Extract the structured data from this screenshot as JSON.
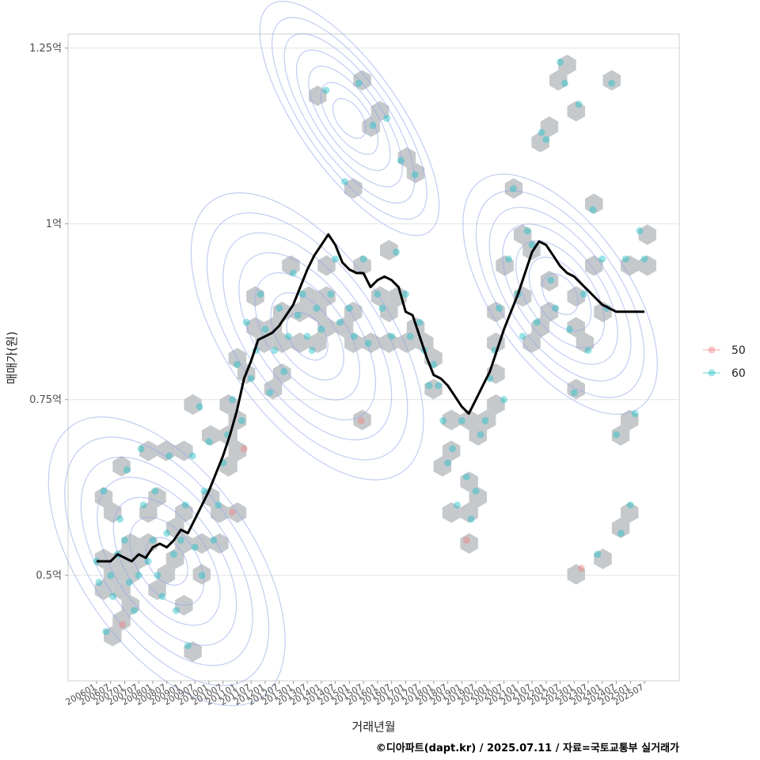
{
  "chart_data": {
    "type": "scatter",
    "xlabel": "거래년월",
    "ylabel": "매매가(원)",
    "x_ticks": [
      "200601",
      "200607",
      "200701",
      "200707",
      "200801",
      "200807",
      "200901",
      "200907",
      "201001",
      "201007",
      "201101",
      "201107",
      "201201",
      "201207",
      "201301",
      "201307",
      "201401",
      "201407",
      "201501",
      "201507",
      "201601",
      "201607",
      "201701",
      "201707",
      "201801",
      "201807",
      "201901",
      "201907",
      "202001",
      "202007",
      "202101",
      "202107",
      "202201",
      "202207",
      "202301",
      "202307",
      "202401",
      "202407",
      "202501",
      "202507"
    ],
    "y_ticks": [
      {
        "value": 0.5,
        "label": "0.5억"
      },
      {
        "value": 0.75,
        "label": "0.75억"
      },
      {
        "value": 1.0,
        "label": "1억"
      },
      {
        "value": 1.25,
        "label": "1.25억"
      }
    ],
    "ylim": [
      0.35,
      1.27
    ],
    "grid": true,
    "legend_position": "right",
    "legend": [
      {
        "name": "50",
        "color": "#f08080"
      },
      {
        "name": "60",
        "color": "#20c0c8"
      }
    ],
    "layers": [
      "hexbin density",
      "density contours",
      "scatter points by size group",
      "moving average line"
    ],
    "moving_average": {
      "color": "#000000",
      "points": [
        [
          "200601",
          0.52
        ],
        [
          "200604",
          0.52
        ],
        [
          "200607",
          0.52
        ],
        [
          "200610",
          0.53
        ],
        [
          "200701",
          0.525
        ],
        [
          "200704",
          0.52
        ],
        [
          "200707",
          0.53
        ],
        [
          "200710",
          0.525
        ],
        [
          "200801",
          0.54
        ],
        [
          "200804",
          0.545
        ],
        [
          "200807",
          0.54
        ],
        [
          "200810",
          0.55
        ],
        [
          "200901",
          0.565
        ],
        [
          "200904",
          0.56
        ],
        [
          "200907",
          0.58
        ],
        [
          "200910",
          0.6
        ],
        [
          "201001",
          0.62
        ],
        [
          "201004",
          0.645
        ],
        [
          "201007",
          0.67
        ],
        [
          "201010",
          0.7
        ],
        [
          "201101",
          0.735
        ],
        [
          "201104",
          0.78
        ],
        [
          "201107",
          0.805
        ],
        [
          "201110",
          0.835
        ],
        [
          "201201",
          0.84
        ],
        [
          "201204",
          0.845
        ],
        [
          "201207",
          0.855
        ],
        [
          "201210",
          0.87
        ],
        [
          "201301",
          0.885
        ],
        [
          "201304",
          0.91
        ],
        [
          "201307",
          0.935
        ],
        [
          "201310",
          0.955
        ],
        [
          "201401",
          0.97
        ],
        [
          "201404",
          0.985
        ],
        [
          "201407",
          0.97
        ],
        [
          "201410",
          0.945
        ],
        [
          "201501",
          0.935
        ],
        [
          "201504",
          0.93
        ],
        [
          "201507",
          0.93
        ],
        [
          "201510",
          0.91
        ],
        [
          "201601",
          0.92
        ],
        [
          "201604",
          0.925
        ],
        [
          "201607",
          0.92
        ],
        [
          "201610",
          0.91
        ],
        [
          "201701",
          0.875
        ],
        [
          "201704",
          0.87
        ],
        [
          "201707",
          0.84
        ],
        [
          "201710",
          0.81
        ],
        [
          "201801",
          0.785
        ],
        [
          "201804",
          0.78
        ],
        [
          "201807",
          0.77
        ],
        [
          "201810",
          0.755
        ],
        [
          "201901",
          0.74
        ],
        [
          "201904",
          0.73
        ],
        [
          "201907",
          0.75
        ],
        [
          "201910",
          0.77
        ],
        [
          "202001",
          0.79
        ],
        [
          "202004",
          0.82
        ],
        [
          "202007",
          0.85
        ],
        [
          "202010",
          0.875
        ],
        [
          "202101",
          0.9
        ],
        [
          "202104",
          0.93
        ],
        [
          "202107",
          0.96
        ],
        [
          "202110",
          0.975
        ],
        [
          "202201",
          0.97
        ],
        [
          "202204",
          0.955
        ],
        [
          "202207",
          0.94
        ],
        [
          "202210",
          0.93
        ],
        [
          "202301",
          0.925
        ],
        [
          "202304",
          0.915
        ],
        [
          "202307",
          0.905
        ],
        [
          "202310",
          0.895
        ],
        [
          "202401",
          0.885
        ],
        [
          "202404",
          0.88
        ],
        [
          "202407",
          0.875
        ],
        [
          "202410",
          0.875
        ],
        [
          "202501",
          0.875
        ],
        [
          "202504",
          0.875
        ],
        [
          "202507",
          0.875
        ]
      ]
    },
    "series": [
      {
        "name": "60",
        "points": [
          [
            "200601",
            0.52
          ],
          [
            "200602",
            0.49
          ],
          [
            "200604",
            0.62
          ],
          [
            "200605",
            0.42
          ],
          [
            "200607",
            0.5
          ],
          [
            "200608",
            0.47
          ],
          [
            "200610",
            0.53
          ],
          [
            "200611",
            0.58
          ],
          [
            "200701",
            0.55
          ],
          [
            "200702",
            0.65
          ],
          [
            "200703",
            0.49
          ],
          [
            "200705",
            0.45
          ],
          [
            "200707",
            0.5
          ],
          [
            "200708",
            0.68
          ],
          [
            "200709",
            0.6
          ],
          [
            "200711",
            0.52
          ],
          [
            "200801",
            0.55
          ],
          [
            "200802",
            0.62
          ],
          [
            "200803",
            0.5
          ],
          [
            "200805",
            0.47
          ],
          [
            "200807",
            0.56
          ],
          [
            "200808",
            0.67
          ],
          [
            "200810",
            0.53
          ],
          [
            "200811",
            0.45
          ],
          [
            "200901",
            0.55
          ],
          [
            "200903",
            0.6
          ],
          [
            "200904",
            0.4
          ],
          [
            "200906",
            0.67
          ],
          [
            "200907",
            0.54
          ],
          [
            "200909",
            0.74
          ],
          [
            "200910",
            0.5
          ],
          [
            "200911",
            0.62
          ],
          [
            "201001",
            0.69
          ],
          [
            "201003",
            0.55
          ],
          [
            "201005",
            0.6
          ],
          [
            "201007",
            0.66
          ],
          [
            "201009",
            0.7
          ],
          [
            "201011",
            0.75
          ],
          [
            "201101",
            0.8
          ],
          [
            "201103",
            0.72
          ],
          [
            "201105",
            0.86
          ],
          [
            "201107",
            0.78
          ],
          [
            "201109",
            0.82
          ],
          [
            "201111",
            0.9
          ],
          [
            "201201",
            0.85
          ],
          [
            "201203",
            0.76
          ],
          [
            "201205",
            0.82
          ],
          [
            "201207",
            0.88
          ],
          [
            "201209",
            0.79
          ],
          [
            "201211",
            0.84
          ],
          [
            "201301",
            0.93
          ],
          [
            "201303",
            0.87
          ],
          [
            "201305",
            0.9
          ],
          [
            "201307",
            0.84
          ],
          [
            "201309",
            0.82
          ],
          [
            "201311",
            0.88
          ],
          [
            "201401",
            0.85
          ],
          [
            "201403",
            1.19
          ],
          [
            "201405",
            0.9
          ],
          [
            "201407",
            0.95
          ],
          [
            "201409",
            0.86
          ],
          [
            "201411",
            1.06
          ],
          [
            "201501",
            0.88
          ],
          [
            "201503",
            0.84
          ],
          [
            "201505",
            1.2
          ],
          [
            "201507",
            0.95
          ],
          [
            "201509",
            0.83
          ],
          [
            "201511",
            1.14
          ],
          [
            "201601",
            0.9
          ],
          [
            "201603",
            0.88
          ],
          [
            "201605",
            1.15
          ],
          [
            "201607",
            0.84
          ],
          [
            "201609",
            0.96
          ],
          [
            "201611",
            1.09
          ],
          [
            "201701",
            0.9
          ],
          [
            "201703",
            0.84
          ],
          [
            "201705",
            1.07
          ],
          [
            "201707",
            0.86
          ],
          [
            "201709",
            0.82
          ],
          [
            "201711",
            0.77
          ],
          [
            "201801",
            0.8
          ],
          [
            "201803",
            0.77
          ],
          [
            "201805",
            0.72
          ],
          [
            "201807",
            0.66
          ],
          [
            "201809",
            0.68
          ],
          [
            "201811",
            0.6
          ],
          [
            "201901",
            0.72
          ],
          [
            "201903",
            0.64
          ],
          [
            "201905",
            0.58
          ],
          [
            "201907",
            0.62
          ],
          [
            "201909",
            0.7
          ],
          [
            "201911",
            0.72
          ],
          [
            "202001",
            0.78
          ],
          [
            "202003",
            0.82
          ],
          [
            "202005",
            0.88
          ],
          [
            "202007",
            0.75
          ],
          [
            "202009",
            0.95
          ],
          [
            "202011",
            1.05
          ],
          [
            "202101",
            0.9
          ],
          [
            "202103",
            0.84
          ],
          [
            "202105",
            0.99
          ],
          [
            "202107",
            0.97
          ],
          [
            "202109",
            0.86
          ],
          [
            "202111",
            1.13
          ],
          [
            "202201",
            1.12
          ],
          [
            "202203",
            0.92
          ],
          [
            "202205",
            0.88
          ],
          [
            "202207",
            1.23
          ],
          [
            "202209",
            1.2
          ],
          [
            "202211",
            0.85
          ],
          [
            "202301",
            0.76
          ],
          [
            "202303",
            1.17
          ],
          [
            "202305",
            0.9
          ],
          [
            "202307",
            0.82
          ],
          [
            "202309",
            1.02
          ],
          [
            "202311",
            0.53
          ],
          [
            "202401",
            0.95
          ],
          [
            "202403",
            0.88
          ],
          [
            "202405",
            1.2
          ],
          [
            "202407",
            0.7
          ],
          [
            "202409",
            0.56
          ],
          [
            "202411",
            0.95
          ],
          [
            "202501",
            0.6
          ],
          [
            "202503",
            0.73
          ],
          [
            "202505",
            0.99
          ],
          [
            "202507",
            0.95
          ]
        ]
      },
      {
        "name": "50",
        "points": [
          [
            "200612",
            0.43
          ],
          [
            "201011",
            0.59
          ],
          [
            "201104",
            0.68
          ],
          [
            "201506",
            0.72
          ],
          [
            "201903",
            0.55
          ],
          [
            "202304",
            0.51
          ]
        ]
      }
    ]
  },
  "caption": "©디아파트(dapt.kr) / 2025.07.11 / 자료=국토교통부 실거래가"
}
